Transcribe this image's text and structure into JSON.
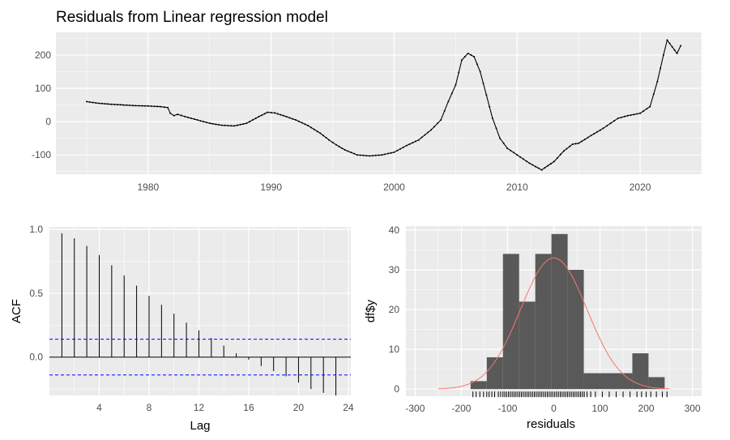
{
  "chart_data": [
    {
      "type": "line",
      "title": "Residuals from Linear regression model",
      "xlabel": "",
      "ylabel": "",
      "xlim": [
        1972.5,
        2025.0
      ],
      "ylim": [
        -158,
        268
      ],
      "x_ticks": [
        1980,
        1990,
        2000,
        2010,
        2020
      ],
      "y_ticks": [
        200,
        100,
        0,
        -100
      ],
      "grid": true,
      "points": [
        [
          1975.0,
          60
        ],
        [
          1976.0,
          55
        ],
        [
          1977.0,
          52
        ],
        [
          1978.0,
          50
        ],
        [
          1979.0,
          48
        ],
        [
          1980.0,
          47
        ],
        [
          1981.0,
          45
        ],
        [
          1981.6,
          42
        ],
        [
          1981.8,
          25
        ],
        [
          1982.1,
          18
        ],
        [
          1982.4,
          22
        ],
        [
          1983.0,
          15
        ],
        [
          1984.0,
          5
        ],
        [
          1985.0,
          -5
        ],
        [
          1986.0,
          -11
        ],
        [
          1987.0,
          -13
        ],
        [
          1988.0,
          -5
        ],
        [
          1989.0,
          15
        ],
        [
          1989.7,
          28
        ],
        [
          1990.3,
          26
        ],
        [
          1991.0,
          18
        ],
        [
          1992.0,
          5
        ],
        [
          1993.0,
          -12
        ],
        [
          1994.0,
          -35
        ],
        [
          1994.7,
          -55
        ],
        [
          1995.3,
          -70
        ],
        [
          1996.0,
          -85
        ],
        [
          1997.0,
          -100
        ],
        [
          1998.0,
          -103
        ],
        [
          1999.0,
          -100
        ],
        [
          2000.0,
          -92
        ],
        [
          2001.0,
          -72
        ],
        [
          2002.0,
          -55
        ],
        [
          2003.0,
          -25
        ],
        [
          2003.8,
          5
        ],
        [
          2004.4,
          60
        ],
        [
          2005.0,
          110
        ],
        [
          2005.5,
          185
        ],
        [
          2006.0,
          205
        ],
        [
          2006.5,
          195
        ],
        [
          2007.0,
          150
        ],
        [
          2007.5,
          80
        ],
        [
          2008.0,
          10
        ],
        [
          2008.6,
          -50
        ],
        [
          2009.2,
          -80
        ],
        [
          2010.0,
          -100
        ],
        [
          2011.0,
          -125
        ],
        [
          2012.0,
          -145
        ],
        [
          2013.0,
          -120
        ],
        [
          2013.8,
          -88
        ],
        [
          2014.5,
          -68
        ],
        [
          2015.0,
          -65
        ],
        [
          2016.0,
          -42
        ],
        [
          2017.0,
          -20
        ],
        [
          2017.6,
          -5
        ],
        [
          2018.2,
          10
        ],
        [
          2019.0,
          18
        ],
        [
          2020.0,
          25
        ],
        [
          2020.8,
          45
        ],
        [
          2021.4,
          120
        ],
        [
          2021.9,
          200
        ],
        [
          2022.2,
          245
        ],
        [
          2022.6,
          225
        ],
        [
          2023.0,
          205
        ],
        [
          2023.3,
          228
        ]
      ]
    },
    {
      "type": "bar",
      "xlabel": "Lag",
      "ylabel": "ACF",
      "xlim": [
        0,
        24.2
      ],
      "ylim": [
        -0.3,
        1.02
      ],
      "x_ticks": [
        4,
        8,
        12,
        16,
        20,
        24
      ],
      "y_ticks": [
        1.0,
        0.5,
        0.0
      ],
      "grid": true,
      "confidence_bound": 0.14,
      "lags": [
        1,
        2,
        3,
        4,
        5,
        6,
        7,
        8,
        9,
        10,
        11,
        12,
        13,
        14,
        15,
        16,
        17,
        18,
        19,
        20,
        21,
        22,
        23
      ],
      "values": [
        0.97,
        0.93,
        0.87,
        0.8,
        0.72,
        0.64,
        0.56,
        0.48,
        0.41,
        0.34,
        0.27,
        0.21,
        0.15,
        0.09,
        0.03,
        -0.02,
        -0.07,
        -0.11,
        -0.15,
        -0.2,
        -0.25,
        -0.28,
        -0.3
      ]
    },
    {
      "type": "bar",
      "xlabel": "residuals",
      "ylabel": "df$y",
      "xlim": [
        -320,
        320
      ],
      "ylim": [
        -1.8,
        41
      ],
      "x_ticks": [
        -300,
        -200,
        -100,
        0,
        100,
        200,
        300
      ],
      "y_ticks": [
        40,
        30,
        20,
        10,
        0
      ],
      "grid": true,
      "bins": [
        {
          "from": -180,
          "to": -145,
          "count": 2
        },
        {
          "from": -145,
          "to": -110,
          "count": 8
        },
        {
          "from": -110,
          "to": -75,
          "count": 34
        },
        {
          "from": -75,
          "to": -40,
          "count": 22
        },
        {
          "from": -40,
          "to": -5,
          "count": 34
        },
        {
          "from": -5,
          "to": 30,
          "count": 39
        },
        {
          "from": 30,
          "to": 65,
          "count": 30
        },
        {
          "from": 65,
          "to": 100,
          "count": 4
        },
        {
          "from": 100,
          "to": 135,
          "count": 4
        },
        {
          "from": 135,
          "to": 170,
          "count": 4
        },
        {
          "from": 170,
          "to": 205,
          "count": 9
        },
        {
          "from": 205,
          "to": 240,
          "count": 3
        }
      ],
      "normal_curve": {
        "mean": 0,
        "sd": 72,
        "peak": 33,
        "from": -250,
        "to": 250
      },
      "rug": [
        -175,
        -168,
        -160,
        -152,
        -145,
        -140,
        -134,
        -128,
        -120,
        -115,
        -110,
        -106,
        -102,
        -98,
        -94,
        -90,
        -86,
        -82,
        -78,
        -74,
        -70,
        -66,
        -62,
        -58,
        -54,
        -50,
        -46,
        -42,
        -38,
        -34,
        -30,
        -26,
        -22,
        -18,
        -14,
        -10,
        -6,
        -2,
        2,
        6,
        10,
        14,
        18,
        22,
        26,
        30,
        34,
        38,
        42,
        46,
        50,
        54,
        58,
        62,
        66,
        72,
        80,
        90,
        105,
        120,
        135,
        150,
        165,
        180,
        190,
        200,
        210,
        222,
        235,
        245
      ]
    }
  ],
  "colors": {
    "panel": "#ebebeb",
    "grid": "#ffffff",
    "line": "#000000",
    "ci": "#0000ff",
    "hist": "#595959",
    "curve": "#f8766d"
  }
}
